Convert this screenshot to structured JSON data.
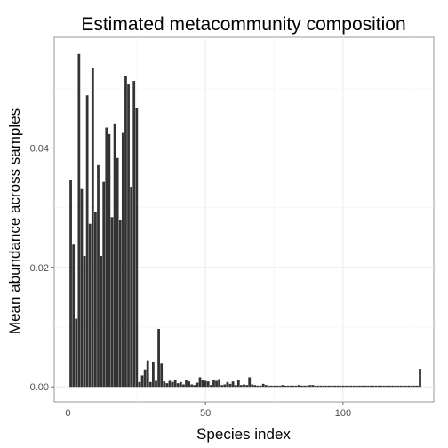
{
  "chart_data": {
    "type": "bar",
    "title": "Estimated metacommunity composition",
    "xlabel": "Species index",
    "ylabel": "Mean abundance across samples",
    "xlim": [
      -5,
      133
    ],
    "ylim": [
      -0.0025,
      0.0585
    ],
    "x_ticks": [
      0,
      50,
      100
    ],
    "x_tick_labels": [
      "0",
      "50",
      "100"
    ],
    "y_ticks": [
      0,
      0.02,
      0.04
    ],
    "y_tick_labels": [
      "0.00",
      "0.02",
      "0.04"
    ],
    "grid": true,
    "legend": "none",
    "bar_color": "#333333",
    "x": [
      1,
      2,
      3,
      4,
      5,
      6,
      7,
      8,
      9,
      10,
      11,
      12,
      13,
      14,
      15,
      16,
      17,
      18,
      19,
      20,
      21,
      22,
      23,
      24,
      25,
      26,
      27,
      28,
      29,
      30,
      31,
      32,
      33,
      34,
      35,
      36,
      37,
      38,
      39,
      40,
      41,
      42,
      43,
      44,
      45,
      46,
      47,
      48,
      49,
      50,
      51,
      52,
      53,
      54,
      55,
      56,
      57,
      58,
      59,
      60,
      61,
      62,
      63,
      64,
      65,
      66,
      67,
      68,
      69,
      70,
      71,
      72,
      73,
      74,
      75,
      76,
      77,
      78,
      79,
      80,
      81,
      82,
      83,
      84,
      85,
      86,
      87,
      88,
      89,
      90,
      91,
      92,
      93,
      94,
      95,
      96,
      97,
      98,
      99,
      100,
      101,
      102,
      103,
      104,
      105,
      106,
      107,
      108,
      109,
      110,
      111,
      112,
      113,
      114,
      115,
      116,
      117,
      118,
      119,
      120,
      121,
      122,
      123,
      124,
      125,
      126,
      127,
      128
    ],
    "values": [
      0.0346,
      0.0238,
      0.0114,
      0.0557,
      0.0331,
      0.0219,
      0.0488,
      0.0273,
      0.0533,
      0.0293,
      0.0371,
      0.0219,
      0.0343,
      0.0434,
      0.0423,
      0.0284,
      0.0441,
      0.0383,
      0.0279,
      0.0425,
      0.0521,
      0.0506,
      0.0335,
      0.0512,
      0.0467,
      0.0008,
      0.0019,
      0.0029,
      0.0044,
      0.0008,
      0.0042,
      0.001,
      0.0097,
      0.004,
      0.0009,
      0.0006,
      0.001,
      0.0008,
      0.0012,
      0.0006,
      0.0008,
      0.0004,
      0.0011,
      0.0009,
      0.0004,
      0.0003,
      0.0007,
      0.0016,
      0.0012,
      0.001,
      0.0009,
      0.0003,
      0.0012,
      0.001,
      0.0013,
      0.0003,
      0.0004,
      0.0008,
      0.0005,
      0.0009,
      0.0003,
      0.0012,
      0.0003,
      0.0004,
      0.0003,
      0.0016,
      0.0004,
      0.0003,
      0.0002,
      0.0002,
      0.0005,
      0.0003,
      0.0002,
      0.0002,
      0.0002,
      0.0002,
      0.0002,
      0.0003,
      0.0002,
      0.0002,
      0.0002,
      0.0002,
      0.0002,
      0.0003,
      0.0002,
      0.0002,
      0.0002,
      0.0003,
      0.0003,
      0.0002,
      0.0002,
      0.0002,
      0.0002,
      0.0002,
      0.0002,
      0.0002,
      0.0002,
      0.0002,
      0.0002,
      0.0002,
      0.0002,
      0.0002,
      0.0002,
      0.0002,
      0.0002,
      0.0002,
      0.0002,
      0.0002,
      0.0002,
      0.0002,
      0.0002,
      0.0002,
      0.0002,
      0.0002,
      0.0002,
      0.0002,
      0.0002,
      0.0002,
      0.0002,
      0.0002,
      0.0002,
      0.0002,
      0.0002,
      0.0002,
      0.0002,
      0.0002,
      0.0002,
      0.003
    ]
  }
}
